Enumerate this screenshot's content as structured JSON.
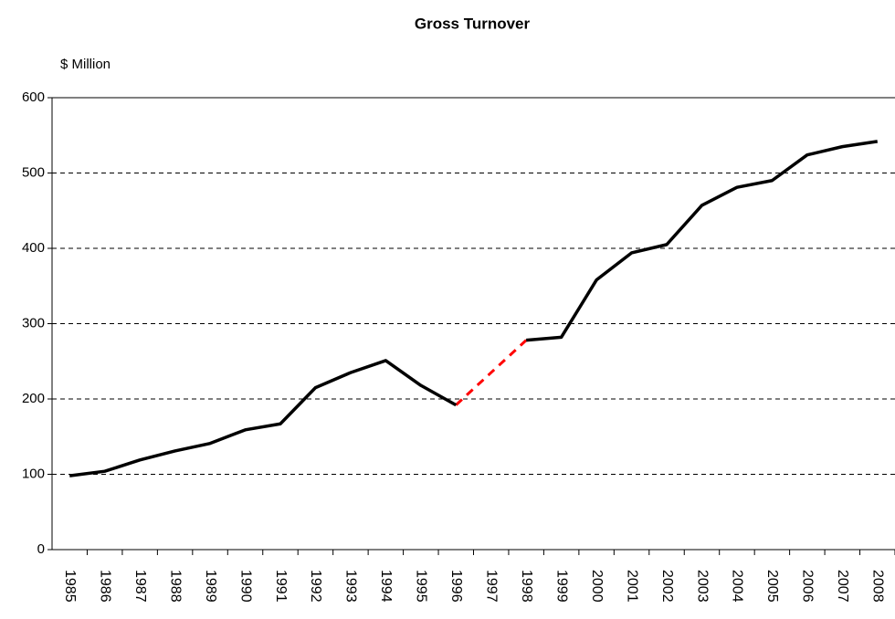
{
  "chart_data": {
    "type": "line",
    "title": "Gross Turnover",
    "y_label": "$ Million",
    "categories": [
      "1985",
      "1986",
      "1987",
      "1988",
      "1989",
      "1990",
      "1991",
      "1992",
      "1993",
      "1994",
      "1995",
      "1996",
      "1997",
      "1998",
      "1999",
      "2000",
      "2001",
      "2002",
      "2003",
      "2004",
      "2005",
      "2006",
      "2007",
      "2008"
    ],
    "series": [
      {
        "name": "Gross Turnover",
        "color": "#000000",
        "values": [
          98,
          104,
          119,
          131,
          141,
          159,
          167,
          215,
          235,
          251,
          218,
          192,
          null,
          278,
          282,
          358,
          394,
          405,
          457,
          481,
          490,
          524,
          535,
          542
        ]
      }
    ],
    "gap_line": {
      "color": "#ff0000",
      "style": "dashed"
    },
    "ylim": [
      0,
      600
    ],
    "yticks": [
      0,
      100,
      200,
      300,
      400,
      500,
      600
    ],
    "grid": true
  }
}
